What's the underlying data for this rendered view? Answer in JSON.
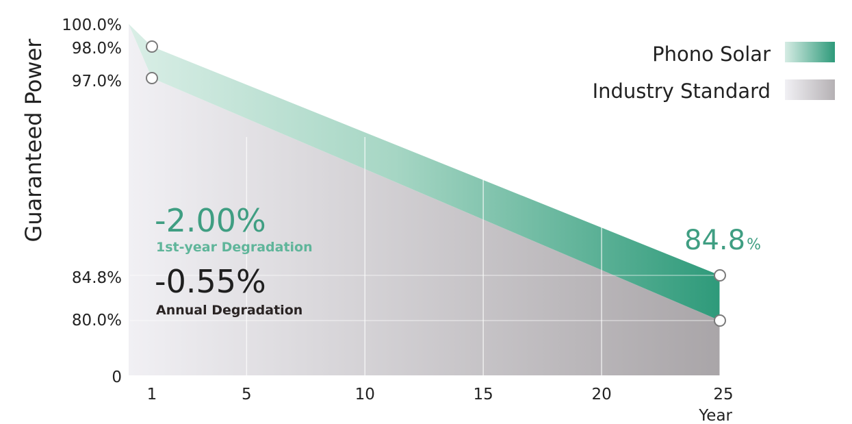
{
  "chart_data": {
    "type": "area",
    "ylabel": "Guaranteed Power",
    "xlabel": "Year",
    "x_ticks": [
      1,
      5,
      10,
      15,
      20,
      25
    ],
    "y_ticks": [
      "100.0%",
      "98.0%",
      "97.0%",
      "84.8%",
      "80.0%",
      "0"
    ],
    "xlim": [
      0,
      25
    ],
    "series": [
      {
        "name": "Phono Solar",
        "x": [
          0,
          1,
          25
        ],
        "y": [
          100.0,
          98.0,
          84.8
        ]
      },
      {
        "name": "Industry Standard",
        "x": [
          0,
          1,
          25
        ],
        "y": [
          100.0,
          97.0,
          80.0
        ]
      }
    ],
    "legend": "top-right",
    "grid": "vertical dashed lines at ticks",
    "annotations": {
      "first_year_value": "-2.00%",
      "first_year_label": "1st-year Degradation",
      "annual_value": "-0.55%",
      "annual_label": "Annual Degradation",
      "end_value": "84.8",
      "end_unit": "%"
    },
    "colors": {
      "phono_dark": "#2e9a7a",
      "phono_light": "#d6ece4",
      "industry_dark": "#a9a5a8",
      "industry_light": "#f1f0f4"
    }
  }
}
